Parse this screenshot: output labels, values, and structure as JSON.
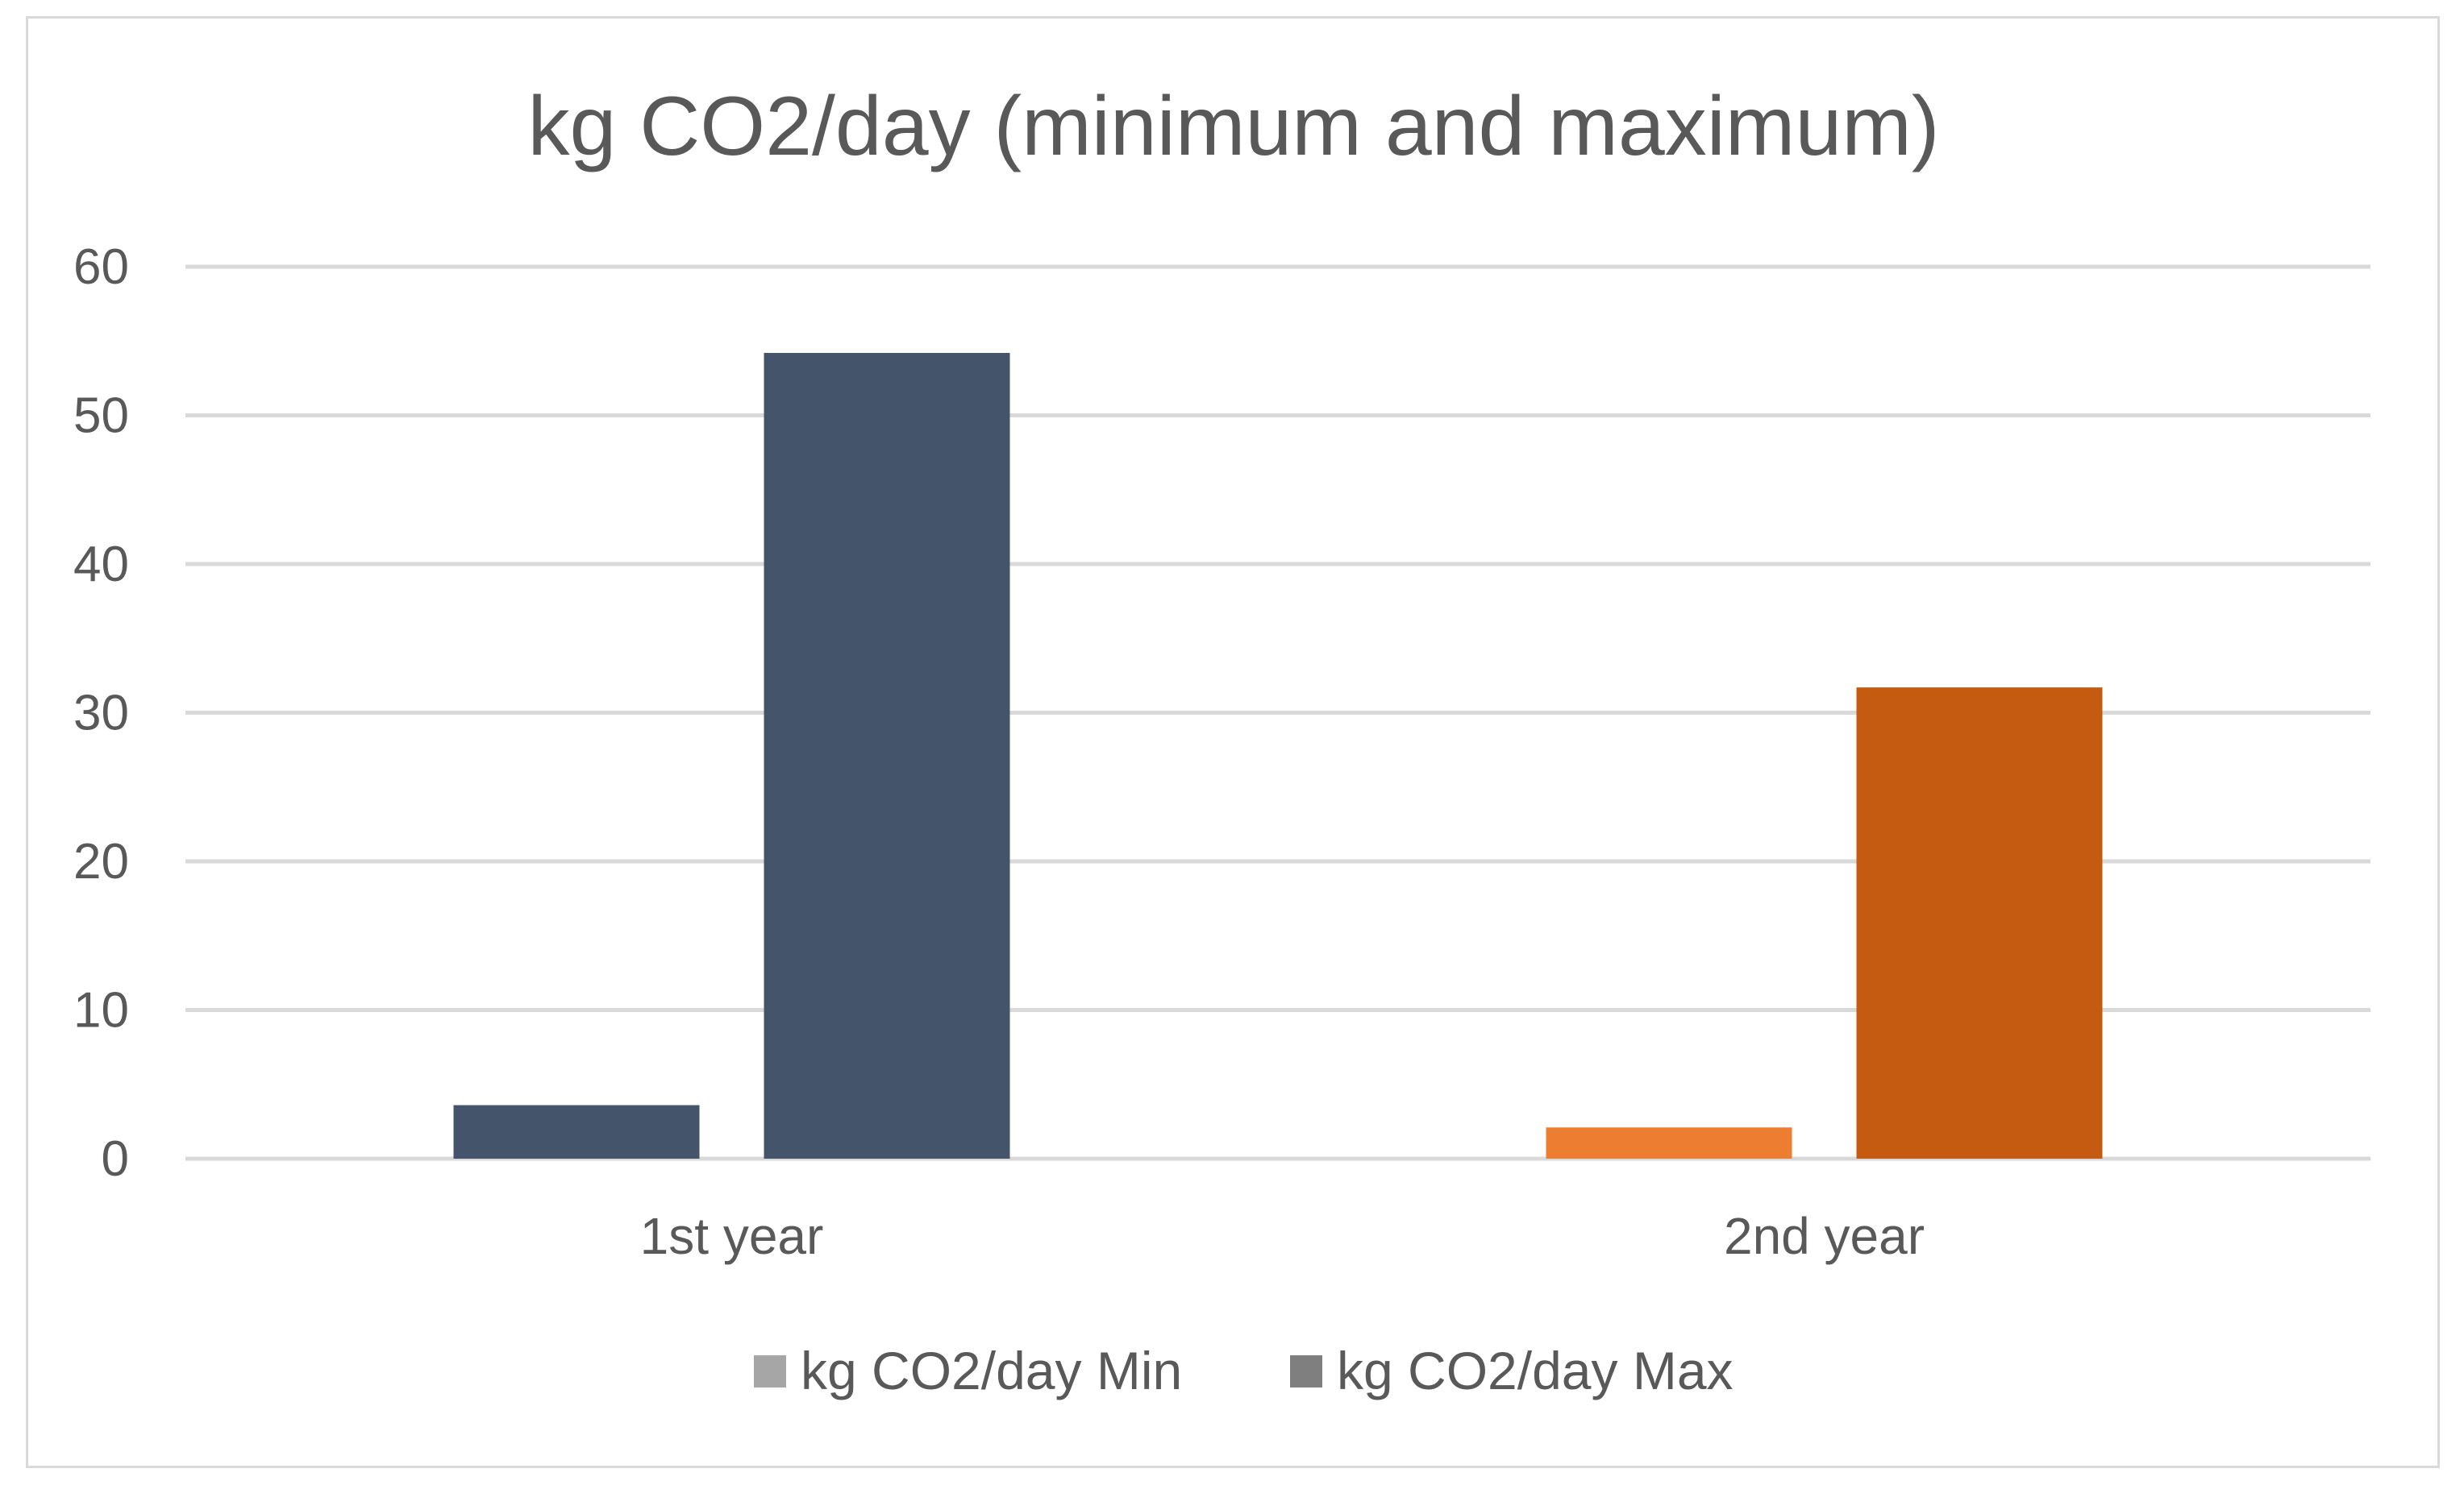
{
  "chart_data": {
    "type": "bar",
    "title": "kg CO2/day (minimum and maximum)",
    "categories": [
      "1st year",
      "2nd year"
    ],
    "series": [
      {
        "name": "kg CO2/day Min",
        "values": [
          3.6,
          2.1
        ],
        "legend_color": "#a6a6a6"
      },
      {
        "name": "kg CO2/day Max",
        "values": [
          54.2,
          31.7
        ],
        "legend_color": "#7f7f7f"
      }
    ],
    "bar_colors": [
      [
        "#44546a",
        "#ed7d31"
      ],
      [
        "#44546a",
        "#c55a11"
      ]
    ],
    "y_ticks": [
      "0",
      "10",
      "20",
      "30",
      "40",
      "50",
      "60"
    ],
    "ylim": [
      0,
      60
    ],
    "xlabel": "",
    "ylabel": "",
    "grid": true,
    "legend_position": "bottom"
  }
}
